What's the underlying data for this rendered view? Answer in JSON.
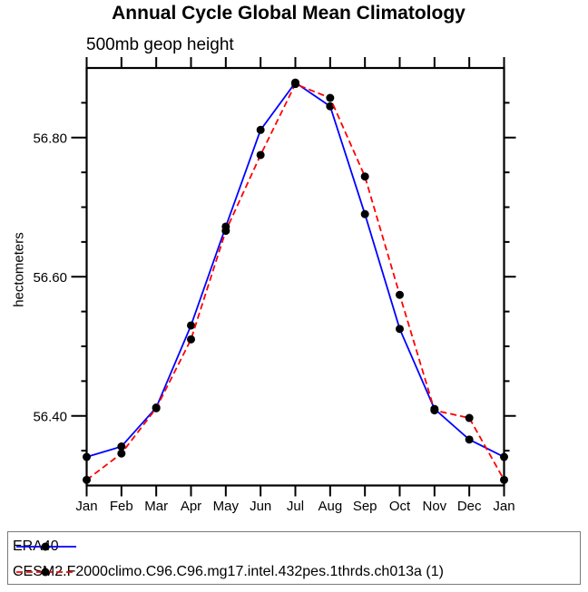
{
  "title": "Annual Cycle Global Mean Climatology",
  "subtitle": "500mb geop height",
  "colors": {
    "axis": "#000000",
    "era40_line": "#0000ff",
    "cesm2_line": "#ff0000",
    "marker": "#000000",
    "legend_border": "#7a7a7a",
    "background": "#ffffff"
  },
  "chart_data": {
    "type": "line",
    "title": "Annual Cycle Global Mean Climatology",
    "subtitle": "500mb geop height",
    "xlabel": "",
    "ylabel": "hectometers",
    "categories": [
      "Jan",
      "Feb",
      "Mar",
      "Apr",
      "May",
      "Jun",
      "Jul",
      "Aug",
      "Sep",
      "Oct",
      "Nov",
      "Dec",
      "Jan"
    ],
    "ylim": [
      56.3,
      56.9
    ],
    "ytick_major_values": [
      56.4,
      56.6,
      56.8
    ],
    "ytick_labels": [
      "56.40",
      "56.60",
      "56.80"
    ],
    "ytick_minor_step": 0.05,
    "grid": false,
    "legend_position": "bottom-left-box",
    "series": [
      {
        "name": "ERA40",
        "color": "#0000ff",
        "style": "solid",
        "marker": "black-dot",
        "values": [
          56.341,
          56.356,
          56.412,
          56.53,
          56.672,
          56.811,
          56.879,
          56.845,
          56.69,
          56.525,
          56.41,
          56.366,
          56.341
        ]
      },
      {
        "name": "CESM2.F2000climo.C96.C96.mg17.intel.432pes.1thrds.ch013a (1)",
        "color": "#ff0000",
        "style": "dashed",
        "marker": "black-dot",
        "values": [
          56.308,
          56.346,
          56.411,
          56.51,
          56.666,
          56.775,
          56.877,
          56.857,
          56.744,
          56.574,
          56.408,
          56.397,
          56.308
        ]
      }
    ]
  }
}
